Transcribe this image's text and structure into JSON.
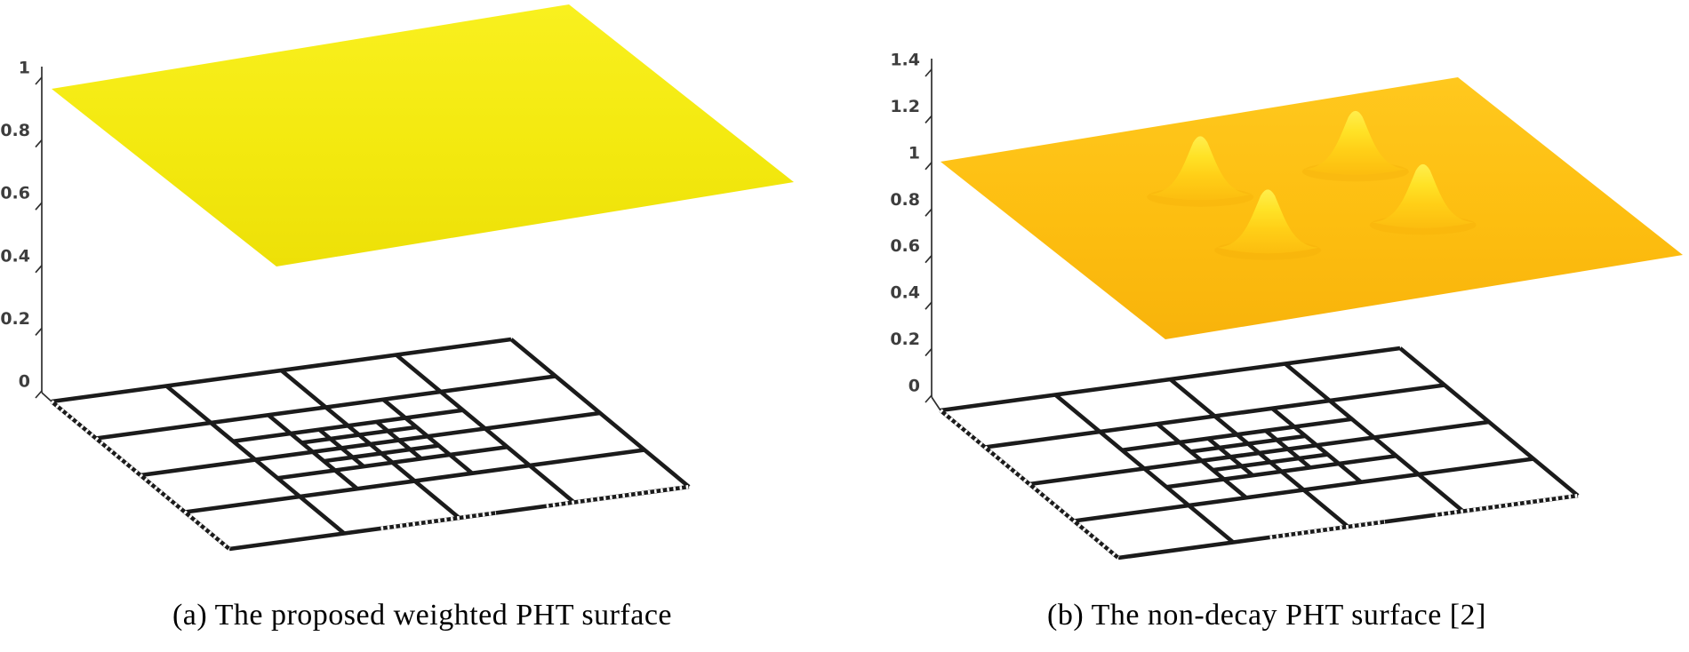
{
  "figure_background": "#ffffff",
  "panels": {
    "a": {
      "caption": "(a) The proposed weighted PHT surface",
      "axis_ticks": [
        "1",
        "0.8",
        "0.6",
        "0.4",
        "0.2",
        "0"
      ]
    },
    "b": {
      "caption": "(b) The non-decay PHT surface [2]",
      "axis_ticks": [
        "1.4",
        "1.2",
        "1",
        "0.8",
        "0.6",
        "0.4",
        "0.2",
        "0"
      ]
    }
  },
  "colors": {
    "surface_a_light": "#F9F01F",
    "surface_a": "#F3E90F",
    "surface_a_dark": "#EDE008",
    "surface_b_light": "#FFC81E",
    "surface_b": "#FDBE10",
    "surface_b_dark": "#F8B30B",
    "peak_top": "#FFEE4D",
    "peak_upper": "#FFE226",
    "peak_mid": "#FFCF17",
    "peak_base": "#FCBD0F",
    "peak_shadow": "#F3AE09",
    "mesh_line": "#1b1b1b",
    "axis_line": "#2f2f2f",
    "tick_label": "#3d3d3d",
    "caption_text": "#000000"
  },
  "chart_data": [
    {
      "type": "surface",
      "title": "(a) The proposed weighted PHT surface",
      "zlim": [
        0,
        1
      ],
      "zticks": [
        0,
        0.2,
        0.4,
        0.6,
        0.8,
        1
      ],
      "xy_domain": [
        [
          0,
          1
        ],
        [
          0,
          1
        ]
      ],
      "surface_function": "z(x,y) = 1 (flat constant surface; weighted PHT basis forms a partition of unity)",
      "surface_height_z": 1,
      "peaks": [],
      "tmesh": {
        "base_grid": "4x4",
        "base_divisions": 4,
        "refinements": [
          {
            "region": [
              0.25,
              0.75
            ],
            "new_lines": [
              0.375,
              0.625
            ]
          },
          {
            "region": [
              0.375,
              0.625
            ],
            "new_lines": [
              0.4375,
              0.5625
            ]
          }
        ],
        "description": "hierarchical T-mesh drawn on the z=0 plane below the surface"
      },
      "legend": "none",
      "grid": "off"
    },
    {
      "type": "surface",
      "title": "(b) The non-decay PHT surface [2]",
      "zlim": [
        0,
        1.4
      ],
      "zticks": [
        0,
        0.2,
        0.4,
        0.6,
        0.8,
        1,
        1.2,
        1.4
      ],
      "xy_domain": [
        [
          0,
          1
        ],
        [
          0,
          1
        ]
      ],
      "surface_function": "z(x,y) ≈ 1 with four non-decaying bumps above the refined mesh region",
      "surface_height_z": 1,
      "peaks": [
        {
          "x": 0.35,
          "y": 0.35,
          "z": 1.25
        },
        {
          "x": 0.65,
          "y": 0.35,
          "z": 1.25
        },
        {
          "x": 0.35,
          "y": 0.65,
          "z": 1.25
        },
        {
          "x": 0.65,
          "y": 0.65,
          "z": 1.25
        }
      ],
      "tmesh": {
        "base_grid": "4x4",
        "base_divisions": 4,
        "refinements": [
          {
            "region": [
              0.25,
              0.75
            ],
            "new_lines": [
              0.375,
              0.625
            ]
          },
          {
            "region": [
              0.375,
              0.625
            ],
            "new_lines": [
              0.4375,
              0.5625
            ]
          }
        ],
        "description": "hierarchical T-mesh drawn on the z=0 plane below the surface"
      },
      "legend": "none",
      "grid": "off"
    }
  ]
}
